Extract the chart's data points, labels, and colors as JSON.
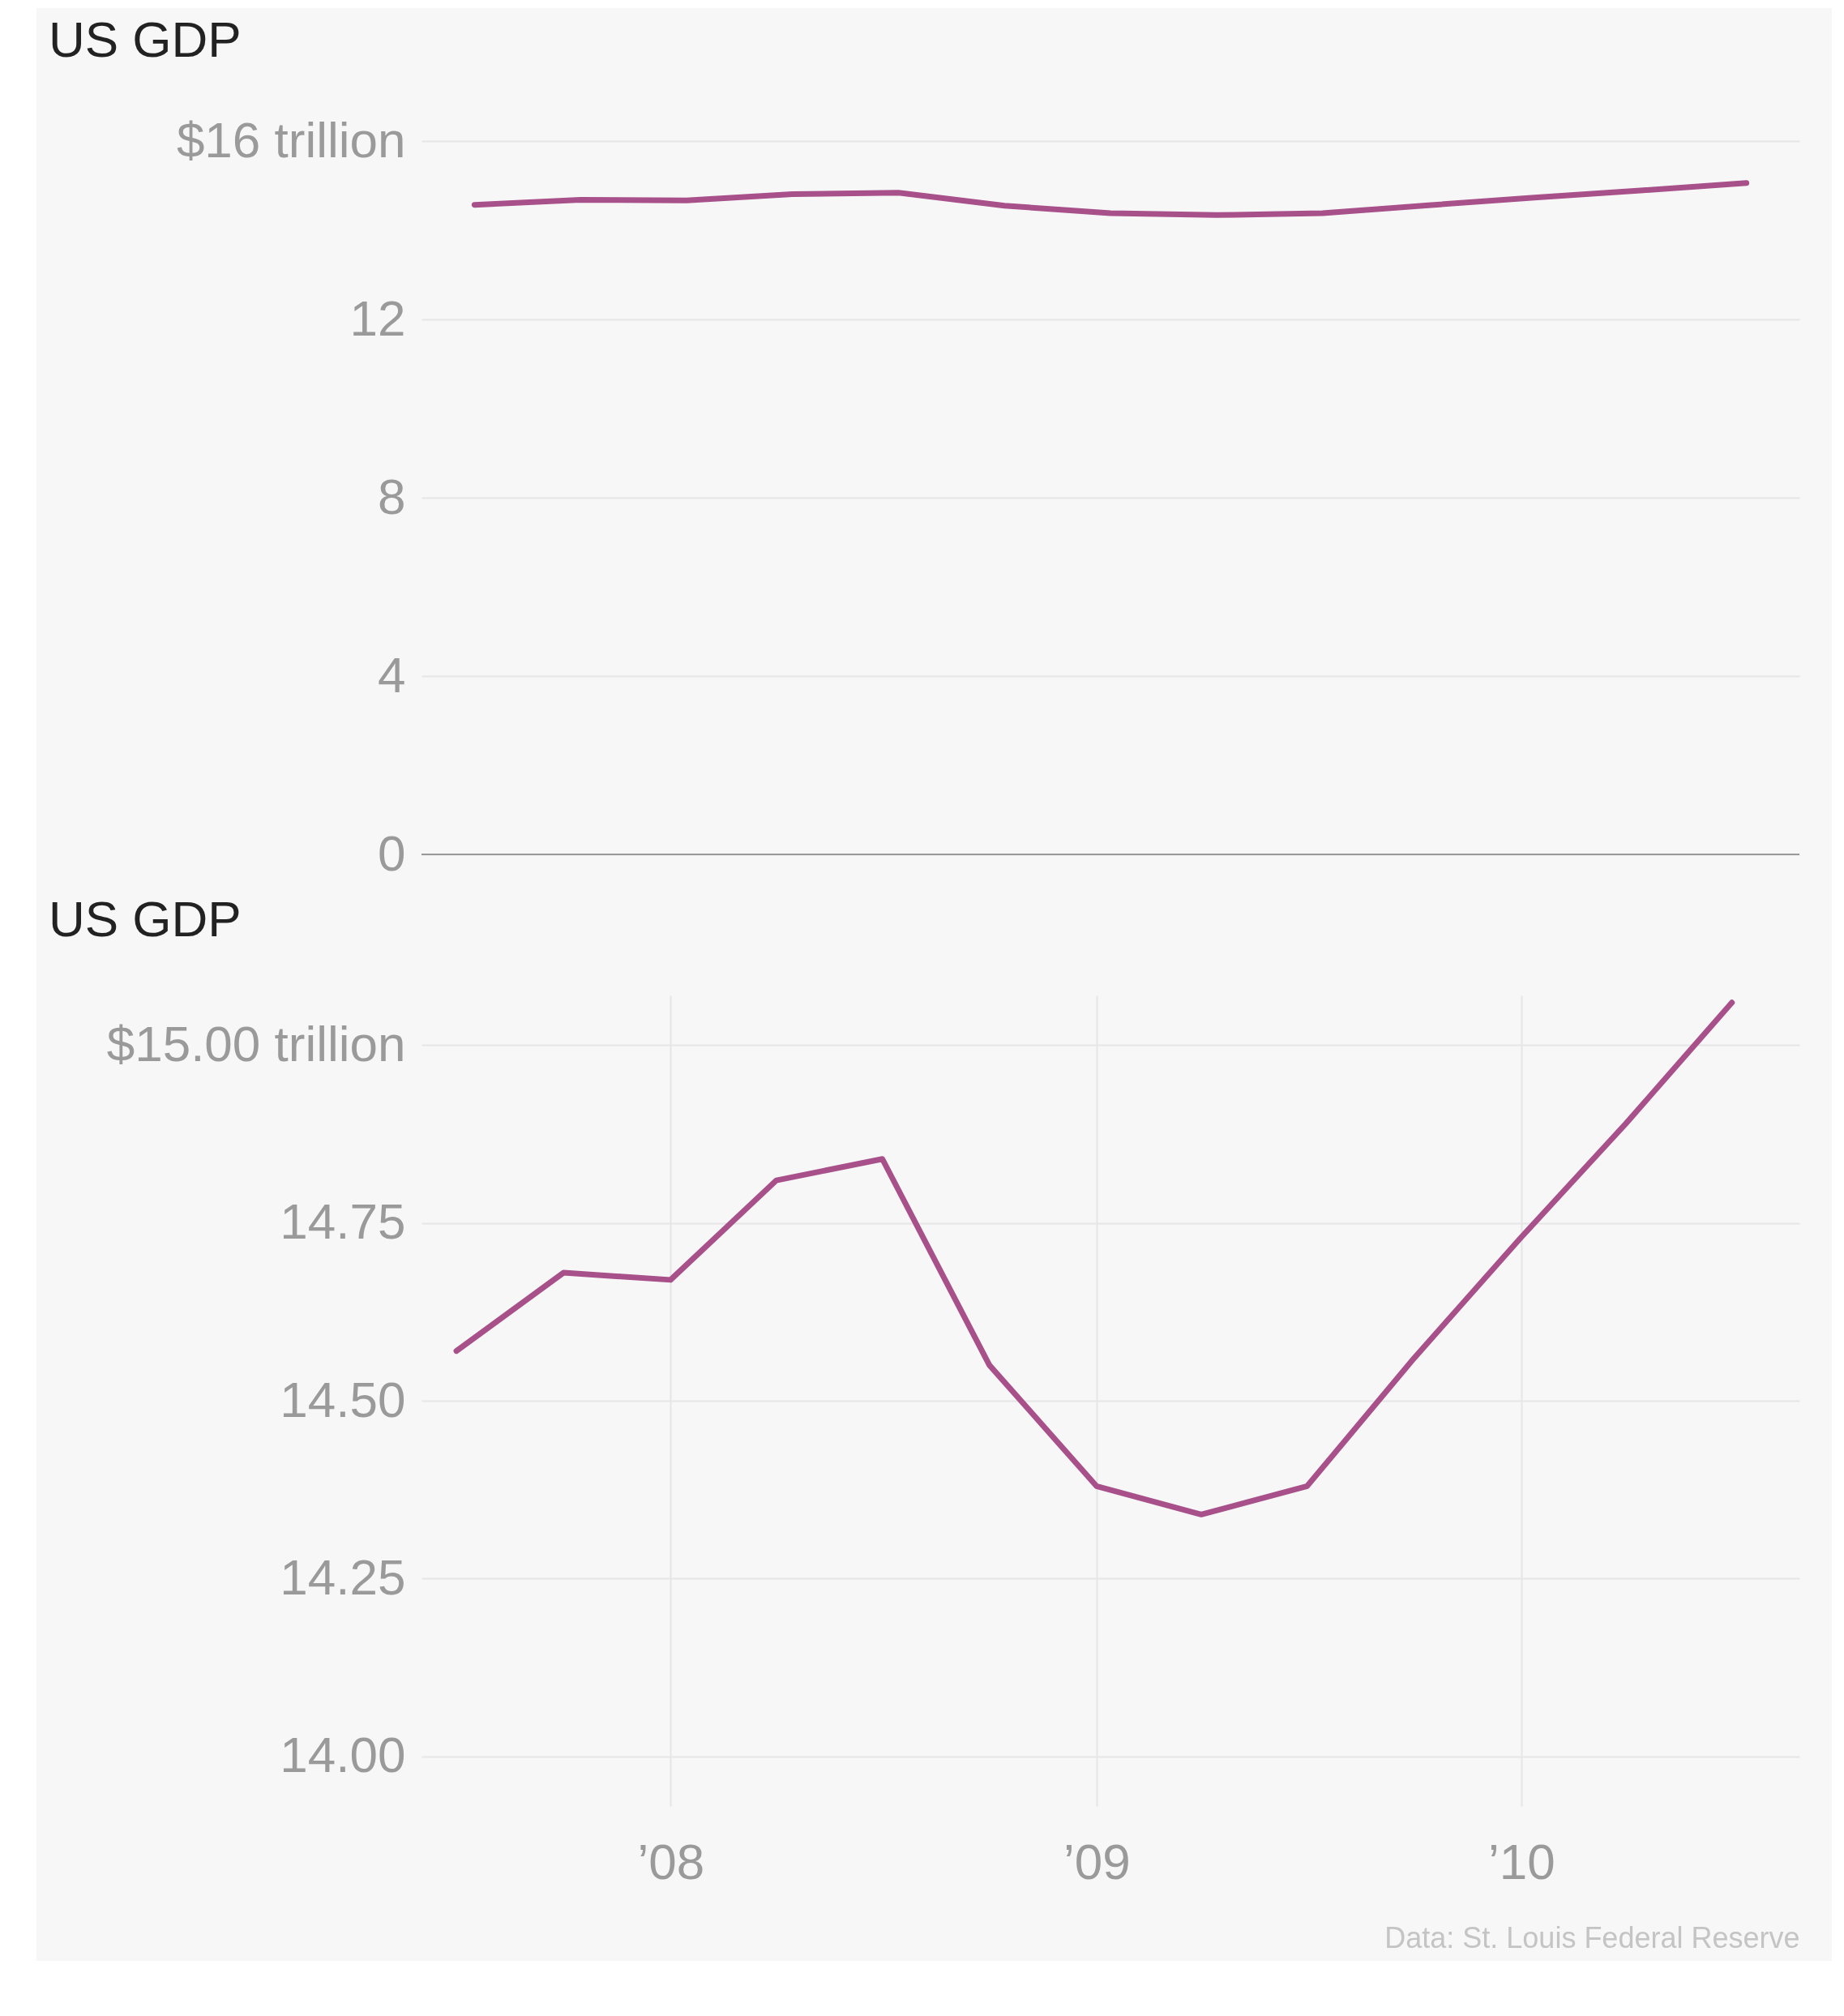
{
  "chart_data": [
    {
      "type": "line",
      "title": "US GDP",
      "categories": [
        null,
        null,
        null,
        null,
        null,
        null,
        null,
        null,
        null,
        null,
        null,
        null,
        null
      ],
      "series": [
        {
          "color": "#a8508a",
          "values": [
            14.57,
            14.68,
            14.67,
            14.81,
            14.84,
            14.55,
            14.38,
            14.34,
            14.38,
            14.56,
            14.73,
            14.89,
            15.06
          ]
        }
      ],
      "ylim": [
        0,
        16
      ],
      "yticks": [
        0,
        4,
        8,
        12,
        {
          "value": 16,
          "label": "$16 trillion"
        }
      ],
      "grid": "y",
      "tick_labels": "y"
    },
    {
      "type": "line",
      "title": "US GDP",
      "x": [
        "2007-07-01",
        "2007-10-01",
        "2008-01-01",
        "2008-04-01",
        "2008-07-01",
        "2008-10-01",
        "2009-01-01",
        "2009-04-01",
        "2009-07-01",
        "2009-10-01",
        "2010-01-01",
        "2010-04-01",
        "2010-07-01"
      ],
      "series": [
        {
          "color": "#a8508a",
          "values": [
            14.57,
            14.68,
            14.67,
            14.81,
            14.84,
            14.55,
            14.38,
            14.34,
            14.38,
            14.56,
            14.73,
            14.89,
            15.06
          ]
        }
      ],
      "xlim": [
        "2007-06-01",
        "2010-08-28"
      ],
      "xticks": [
        {
          "value": "2008-01-01",
          "label": "’08"
        },
        {
          "value": "2009-01-01",
          "label": "’09"
        },
        {
          "value": "2010-01-01",
          "label": "’10"
        }
      ],
      "ylim": [
        13.93,
        15.07
      ],
      "yticks": [
        {
          "value": 14,
          "label": "14.00"
        },
        14.25,
        {
          "value": 14.5,
          "label": "14.50"
        },
        14.75,
        {
          "value": 15,
          "label": "$15.00 trillion"
        }
      ],
      "grid": true,
      "annotations": [
        "Data: St. Louis Federal Reserve"
      ]
    }
  ]
}
